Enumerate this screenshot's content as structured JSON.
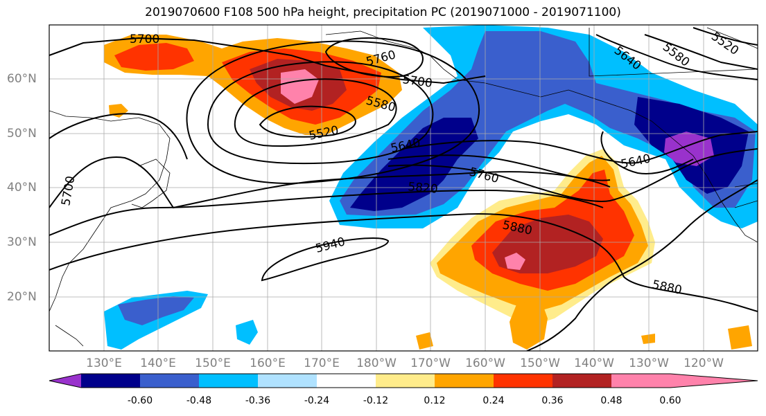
{
  "title": "2019070600 F108 500 hPa height, precipitation PC (2019071000 - 2019071100)",
  "lat_labels": [
    "60°N",
    "50°N",
    "40°N",
    "30°N",
    "20°N"
  ],
  "lon_labels": [
    "130°E",
    "140°E",
    "150°E",
    "160°E",
    "170°E",
    "180°W",
    "170°W",
    "160°W",
    "150°W",
    "140°W",
    "130°W",
    "120°W"
  ],
  "contour_labels": {
    "c5700a": "5700",
    "c5760a": "5760",
    "c5700b": "5700",
    "c5580a": "5580",
    "c5520": "5520",
    "c5640a": "5640",
    "c5760b": "5760",
    "c5820": "5820",
    "c5880a": "5880",
    "c5940": "5940",
    "c5880b": "5880",
    "c5640b": "5640",
    "c5640c": "5640",
    "c5580b": "5580",
    "c5520b": "5520",
    "c5700c": "5700"
  },
  "colorbar": {
    "colors": [
      "#9932cc",
      "#00008b",
      "#3a5fcd",
      "#00bfff",
      "#b0e2ff",
      "#ffffff",
      "#ffec8b",
      "#ffa500",
      "#ff3300",
      "#b22222",
      "#ff82ab"
    ],
    "tick_labels": [
      "-0.60",
      "-0.48",
      "-0.36",
      "-0.24",
      "-0.12",
      "0.12",
      "0.24",
      "0.36",
      "0.48",
      "0.60"
    ]
  },
  "map_colors": {
    "neg1": "#00bfff",
    "neg2": "#3a5fcd",
    "neg3": "#00008b",
    "neg4": "#9932cc",
    "pos1": "#ffec8b",
    "pos2": "#ffa500",
    "pos3": "#ff3300",
    "pos4": "#b22222",
    "pos5": "#ff82ab"
  }
}
